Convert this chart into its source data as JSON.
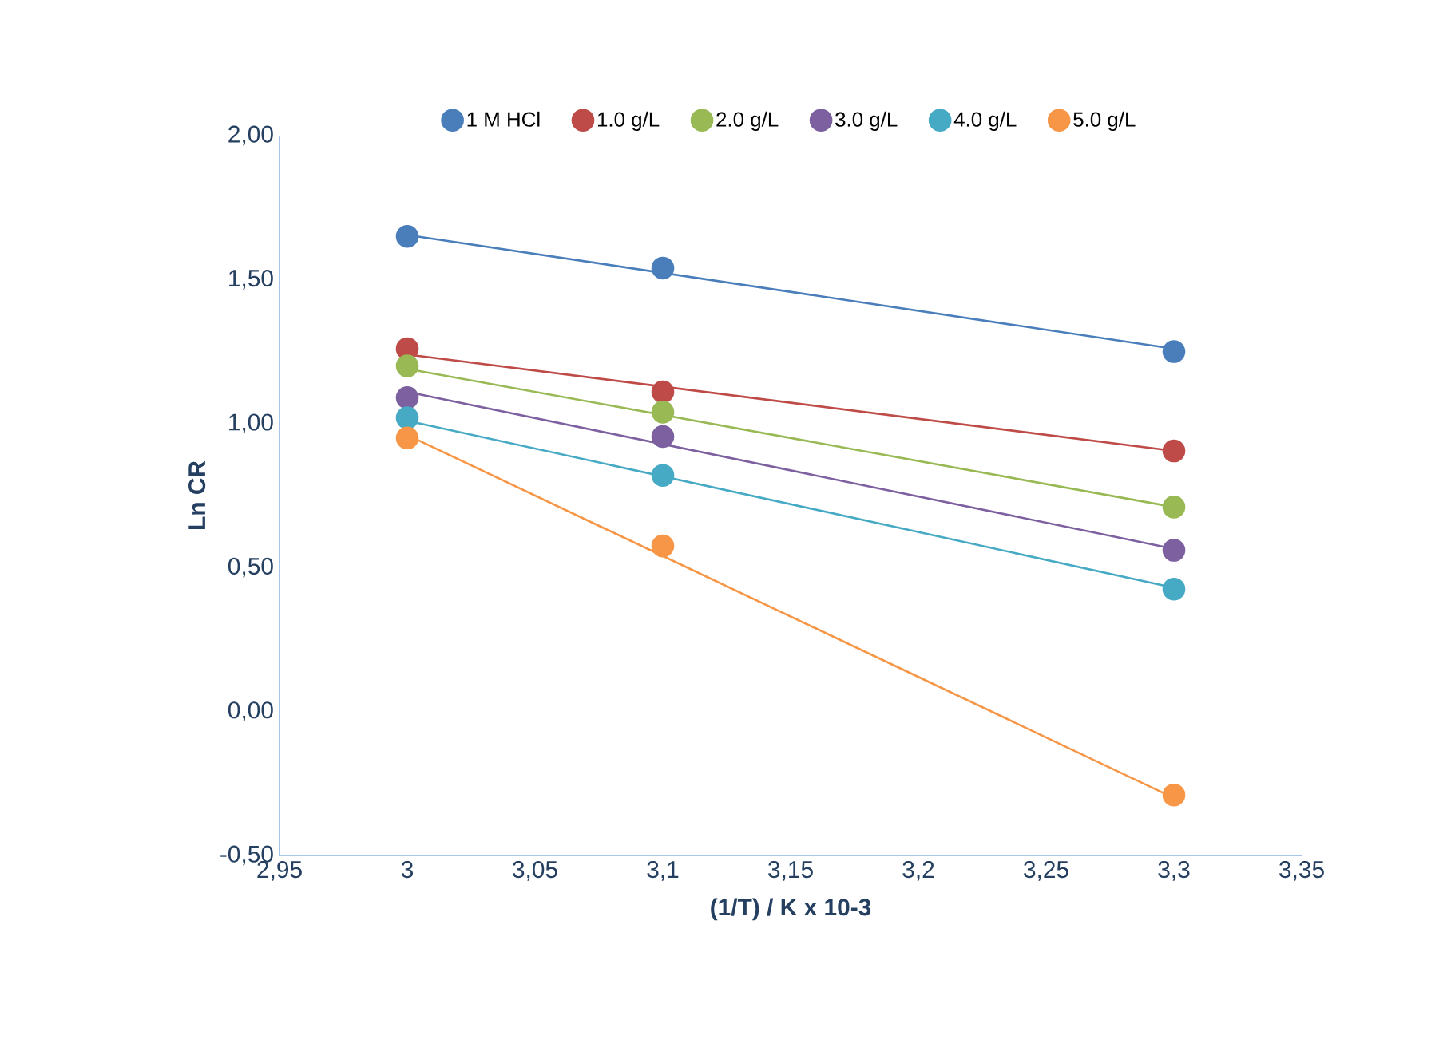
{
  "chart_data": {
    "type": "scatter",
    "xlabel": "(1/T) / K x 10-3",
    "ylabel": "Ln CR",
    "xlim": [
      2.95,
      3.35
    ],
    "xticks": [
      {
        "value": 2.95,
        "label": "2,95"
      },
      3,
      {
        "value": 3.05,
        "label": "3,05"
      },
      {
        "value": 3.1,
        "label": "3,1"
      },
      {
        "value": 3.15,
        "label": "3,15"
      },
      {
        "value": 3.2,
        "label": "3,2"
      },
      {
        "value": 3.25,
        "label": "3,25"
      },
      {
        "value": 3.3,
        "label": "3,3"
      },
      {
        "value": 3.35,
        "label": "3,35"
      }
    ],
    "ylim": [
      -0.5,
      2.0
    ],
    "yticks": [
      {
        "value": -0.5,
        "label": "-0,50"
      },
      {
        "value": 0,
        "label": "0,00"
      },
      {
        "value": 0.5,
        "label": "0,50"
      },
      {
        "value": 1.0,
        "label": "1,00"
      },
      {
        "value": 1.5,
        "label": "1,50"
      },
      {
        "value": 2.0,
        "label": "2,00"
      }
    ],
    "grid": false,
    "legend": "top",
    "line_style": "solid",
    "series": [
      {
        "name": "1 M HCl",
        "color": "#4a7ebb",
        "marker": "circle",
        "x": [
          3,
          3.1,
          3.3
        ],
        "values": [
          1.65,
          1.54,
          1.25
        ]
      },
      {
        "name": "1.0 g/L",
        "color": "#be4b48",
        "marker": "circle",
        "x": [
          3,
          3.1,
          3.3
        ],
        "values": [
          1.26,
          1.11,
          0.905
        ]
      },
      {
        "name": "2.0 g/L",
        "color": "#98b954",
        "marker": "circle",
        "x": [
          3,
          3.1,
          3.3
        ],
        "values": [
          1.2,
          1.04,
          0.71
        ]
      },
      {
        "name": "3.0 g/L",
        "color": "#7d60a0",
        "marker": "circle",
        "x": [
          3,
          3.1,
          3.3
        ],
        "values": [
          1.09,
          0.955,
          0.56
        ]
      },
      {
        "name": "4.0 g/L",
        "color": "#46aac5",
        "marker": "circle",
        "x": [
          3,
          3.1,
          3.3
        ],
        "values": [
          1.02,
          0.82,
          0.425
        ]
      },
      {
        "name": "5.0 g/L",
        "color": "#f79646",
        "marker": "circle",
        "x": [
          3,
          3.1,
          3.3
        ],
        "values": [
          0.95,
          0.575,
          -0.29
        ]
      },
      {
        "type": "line",
        "marker": "none",
        "color": "#4a7ebb",
        "x": [
          3,
          3.3
        ],
        "values": [
          1.655,
          1.26
        ]
      },
      {
        "type": "line",
        "marker": "none",
        "color": "#be4b48",
        "x": [
          3,
          3.3
        ],
        "values": [
          1.24,
          0.905
        ]
      },
      {
        "type": "line",
        "marker": "none",
        "color": "#98b954",
        "x": [
          3,
          3.3
        ],
        "values": [
          1.19,
          0.71
        ]
      },
      {
        "type": "line",
        "marker": "none",
        "color": "#7d60a0",
        "x": [
          3,
          3.3
        ],
        "values": [
          1.11,
          0.565
        ]
      },
      {
        "type": "line",
        "marker": "none",
        "color": "#46aac5",
        "x": [
          3,
          3.3
        ],
        "values": [
          1.01,
          0.43
        ]
      },
      {
        "type": "line",
        "marker": "none",
        "color": "#f79646",
        "x": [
          3,
          3.3
        ],
        "values": [
          0.96,
          -0.3
        ]
      }
    ]
  }
}
